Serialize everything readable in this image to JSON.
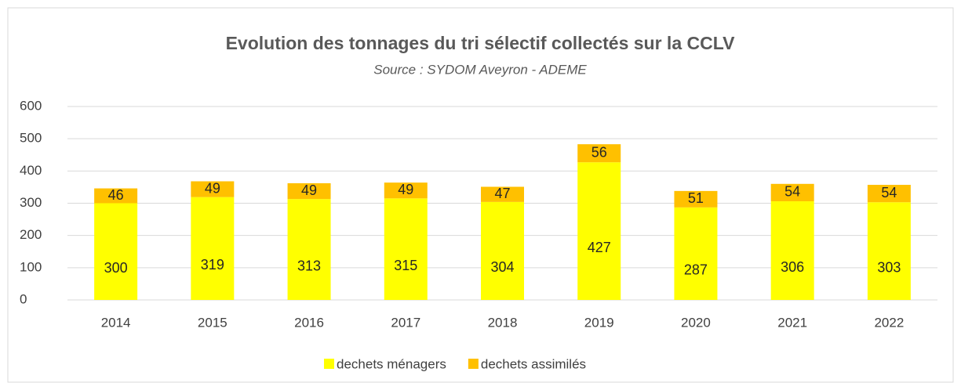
{
  "chart_data": {
    "type": "stacked_bar",
    "title": "Evolution des tonnages du tri sélectif collectés sur la CCLV",
    "subtitle": "Source : SYDOM Aveyron - ADEME",
    "categories": [
      "2014",
      "2015",
      "2016",
      "2017",
      "2018",
      "2019",
      "2020",
      "2021",
      "2022"
    ],
    "series": [
      {
        "name": "dechets ménagers",
        "color": "#ffff00",
        "values": [
          300,
          319,
          313,
          315,
          304,
          427,
          287,
          306,
          303
        ]
      },
      {
        "name": "dechets assimilés",
        "color": "#ffc000",
        "values": [
          46,
          49,
          49,
          49,
          47,
          56,
          51,
          54,
          54
        ]
      }
    ],
    "ylim": [
      0,
      600
    ],
    "yticks": [
      0,
      100,
      200,
      300,
      400,
      500,
      600
    ],
    "grid": true,
    "legend": "bottom"
  }
}
